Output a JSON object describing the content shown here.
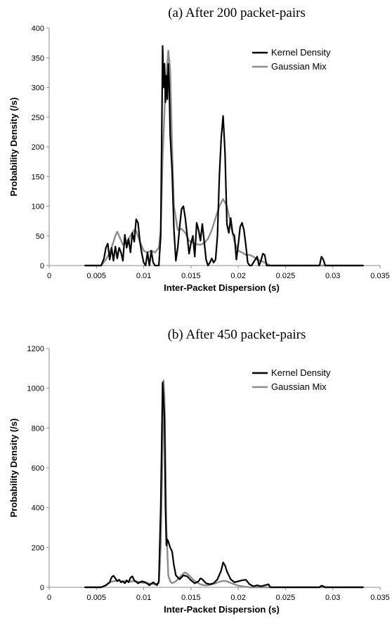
{
  "chart_data": [
    {
      "type": "line",
      "title": "(a)   After 200 packet-pairs",
      "xlabel": "Inter-Packet Dispersion (s)",
      "ylabel": "Probability Density (/s)",
      "xlim": [
        0,
        0.035
      ],
      "ylim": [
        0,
        400
      ],
      "xticks": [
        "0",
        "0.005",
        "0.01",
        "0.015",
        "0.02",
        "0.025",
        "0.03",
        "0.035"
      ],
      "yticks": [
        "0",
        "50",
        "100",
        "150",
        "200",
        "250",
        "300",
        "350",
        "400"
      ],
      "legend_position": "top-right",
      "colors": {
        "Kernel Density": "#000000",
        "Gaussian Mix": "#8c8c8c"
      },
      "series": [
        {
          "name": "Kernel Density",
          "points": [
            [
              0.0038,
              0
            ],
            [
              0.0055,
              0
            ],
            [
              0.0058,
              12
            ],
            [
              0.006,
              30
            ],
            [
              0.0062,
              37
            ],
            [
              0.0064,
              10
            ],
            [
              0.0066,
              30
            ],
            [
              0.0068,
              8
            ],
            [
              0.007,
              32
            ],
            [
              0.0072,
              12
            ],
            [
              0.0074,
              30
            ],
            [
              0.0076,
              22
            ],
            [
              0.0078,
              8
            ],
            [
              0.008,
              52
            ],
            [
              0.0082,
              30
            ],
            [
              0.0084,
              45
            ],
            [
              0.0086,
              22
            ],
            [
              0.0088,
              55
            ],
            [
              0.009,
              40
            ],
            [
              0.0092,
              78
            ],
            [
              0.0094,
              72
            ],
            [
              0.0096,
              40
            ],
            [
              0.0098,
              20
            ],
            [
              0.01,
              5
            ],
            [
              0.0102,
              0
            ],
            [
              0.0104,
              22
            ],
            [
              0.0106,
              0
            ],
            [
              0.0108,
              25
            ],
            [
              0.011,
              5
            ],
            [
              0.0112,
              0
            ],
            [
              0.0116,
              0
            ],
            [
              0.0118,
              50
            ],
            [
              0.012,
              370
            ],
            [
              0.0121,
              300
            ],
            [
              0.0122,
              340
            ],
            [
              0.0123,
              275
            ],
            [
              0.0124,
              320
            ],
            [
              0.0125,
              280
            ],
            [
              0.0126,
              340
            ],
            [
              0.0127,
              300
            ],
            [
              0.0128,
              220
            ],
            [
              0.013,
              160
            ],
            [
              0.0132,
              60
            ],
            [
              0.0134,
              8
            ],
            [
              0.0136,
              30
            ],
            [
              0.0138,
              65
            ],
            [
              0.014,
              95
            ],
            [
              0.0142,
              100
            ],
            [
              0.0144,
              80
            ],
            [
              0.0146,
              50
            ],
            [
              0.0148,
              20
            ],
            [
              0.015,
              38
            ],
            [
              0.0152,
              50
            ],
            [
              0.0154,
              15
            ],
            [
              0.0156,
              72
            ],
            [
              0.0158,
              60
            ],
            [
              0.016,
              42
            ],
            [
              0.0162,
              70
            ],
            [
              0.0164,
              40
            ],
            [
              0.0166,
              10
            ],
            [
              0.0168,
              0
            ],
            [
              0.017,
              5
            ],
            [
              0.0172,
              12
            ],
            [
              0.0174,
              5
            ],
            [
              0.0176,
              10
            ],
            [
              0.0178,
              50
            ],
            [
              0.018,
              150
            ],
            [
              0.0182,
              215
            ],
            [
              0.0184,
              252
            ],
            [
              0.0186,
              190
            ],
            [
              0.0188,
              70
            ],
            [
              0.019,
              55
            ],
            [
              0.0192,
              80
            ],
            [
              0.0194,
              55
            ],
            [
              0.0196,
              50
            ],
            [
              0.0198,
              10
            ],
            [
              0.02,
              35
            ],
            [
              0.0202,
              65
            ],
            [
              0.0204,
              72
            ],
            [
              0.0206,
              60
            ],
            [
              0.0208,
              35
            ],
            [
              0.021,
              5
            ],
            [
              0.0212,
              0
            ],
            [
              0.0214,
              0
            ],
            [
              0.0216,
              5
            ],
            [
              0.0218,
              10
            ],
            [
              0.022,
              15
            ],
            [
              0.0222,
              0
            ],
            [
              0.0224,
              8
            ],
            [
              0.0226,
              20
            ],
            [
              0.0228,
              18
            ],
            [
              0.023,
              0
            ],
            [
              0.0234,
              0
            ],
            [
              0.0286,
              0
            ],
            [
              0.0288,
              15
            ],
            [
              0.029,
              10
            ],
            [
              0.0292,
              0
            ],
            [
              0.0332,
              0
            ]
          ]
        },
        {
          "name": "Gaussian Mix",
          "points": [
            [
              0.0038,
              0
            ],
            [
              0.0055,
              0
            ],
            [
              0.006,
              10
            ],
            [
              0.0065,
              25
            ],
            [
              0.007,
              50
            ],
            [
              0.0072,
              57
            ],
            [
              0.0074,
              50
            ],
            [
              0.0078,
              35
            ],
            [
              0.0082,
              40
            ],
            [
              0.0086,
              50
            ],
            [
              0.009,
              60
            ],
            [
              0.0092,
              58
            ],
            [
              0.0096,
              40
            ],
            [
              0.01,
              25
            ],
            [
              0.0104,
              22
            ],
            [
              0.0108,
              25
            ],
            [
              0.0112,
              22
            ],
            [
              0.0116,
              30
            ],
            [
              0.0118,
              60
            ],
            [
              0.012,
              180
            ],
            [
              0.0123,
              300
            ],
            [
              0.0126,
              362
            ],
            [
              0.0128,
              330
            ],
            [
              0.013,
              200
            ],
            [
              0.0132,
              100
            ],
            [
              0.0136,
              60
            ],
            [
              0.014,
              62
            ],
            [
              0.0144,
              55
            ],
            [
              0.0148,
              42
            ],
            [
              0.0152,
              38
            ],
            [
              0.0156,
              36
            ],
            [
              0.016,
              35
            ],
            [
              0.0164,
              38
            ],
            [
              0.0168,
              45
            ],
            [
              0.0172,
              60
            ],
            [
              0.0176,
              80
            ],
            [
              0.018,
              100
            ],
            [
              0.0184,
              112
            ],
            [
              0.0188,
              100
            ],
            [
              0.0192,
              70
            ],
            [
              0.0196,
              40
            ],
            [
              0.02,
              25
            ],
            [
              0.0204,
              22
            ],
            [
              0.0208,
              18
            ],
            [
              0.0212,
              18
            ],
            [
              0.0216,
              15
            ],
            [
              0.022,
              10
            ],
            [
              0.0224,
              8
            ],
            [
              0.0228,
              5
            ],
            [
              0.0234,
              0
            ],
            [
              0.0332,
              0
            ]
          ]
        }
      ]
    },
    {
      "type": "line",
      "title": "(b)   After 450 packet-pairs",
      "xlabel": "Inter-Packet Dispersion (s)",
      "ylabel": "Probability Density (/s)",
      "xlim": [
        0,
        0.035
      ],
      "ylim": [
        0,
        1200
      ],
      "xticks": [
        "0",
        "0.005",
        "0.01",
        "0.015",
        "0.02",
        "0.025",
        "0.03",
        "0.035"
      ],
      "yticks": [
        "0",
        "200",
        "400",
        "600",
        "800",
        "1000",
        "1200"
      ],
      "legend_position": "top-right",
      "colors": {
        "Kernel Density": "#000000",
        "Gaussian Mix": "#8c8c8c"
      },
      "series": [
        {
          "name": "Kernel Density",
          "points": [
            [
              0.0038,
              0
            ],
            [
              0.0055,
              0
            ],
            [
              0.006,
              10
            ],
            [
              0.0064,
              25
            ],
            [
              0.0066,
              50
            ],
            [
              0.0068,
              58
            ],
            [
              0.007,
              45
            ],
            [
              0.0072,
              30
            ],
            [
              0.0074,
              38
            ],
            [
              0.0076,
              25
            ],
            [
              0.0078,
              30
            ],
            [
              0.008,
              20
            ],
            [
              0.0082,
              35
            ],
            [
              0.0084,
              25
            ],
            [
              0.0086,
              48
            ],
            [
              0.0088,
              55
            ],
            [
              0.009,
              35
            ],
            [
              0.0094,
              20
            ],
            [
              0.0098,
              30
            ],
            [
              0.0102,
              25
            ],
            [
              0.0106,
              10
            ],
            [
              0.011,
              25
            ],
            [
              0.0114,
              10
            ],
            [
              0.0116,
              30
            ],
            [
              0.0118,
              400
            ],
            [
              0.012,
              1030
            ],
            [
              0.0122,
              850
            ],
            [
              0.0123,
              400
            ],
            [
              0.0124,
              210
            ],
            [
              0.0125,
              240
            ],
            [
              0.0126,
              230
            ],
            [
              0.0128,
              200
            ],
            [
              0.013,
              180
            ],
            [
              0.0132,
              110
            ],
            [
              0.0134,
              60
            ],
            [
              0.0138,
              40
            ],
            [
              0.0142,
              60
            ],
            [
              0.0146,
              55
            ],
            [
              0.015,
              35
            ],
            [
              0.0154,
              20
            ],
            [
              0.0158,
              30
            ],
            [
              0.016,
              45
            ],
            [
              0.0162,
              40
            ],
            [
              0.0166,
              20
            ],
            [
              0.017,
              15
            ],
            [
              0.0174,
              20
            ],
            [
              0.0178,
              40
            ],
            [
              0.0182,
              85
            ],
            [
              0.0184,
              125
            ],
            [
              0.0186,
              110
            ],
            [
              0.0188,
              80
            ],
            [
              0.0192,
              40
            ],
            [
              0.0196,
              25
            ],
            [
              0.02,
              30
            ],
            [
              0.0204,
              35
            ],
            [
              0.0208,
              38
            ],
            [
              0.0212,
              15
            ],
            [
              0.0216,
              5
            ],
            [
              0.022,
              10
            ],
            [
              0.0224,
              5
            ],
            [
              0.0228,
              10
            ],
            [
              0.0232,
              15
            ],
            [
              0.0234,
              0
            ],
            [
              0.0286,
              0
            ],
            [
              0.0288,
              8
            ],
            [
              0.029,
              5
            ],
            [
              0.0292,
              0
            ],
            [
              0.0332,
              0
            ]
          ]
        },
        {
          "name": "Gaussian Mix",
          "points": [
            [
              0.0038,
              0
            ],
            [
              0.0055,
              0
            ],
            [
              0.006,
              10
            ],
            [
              0.0064,
              25
            ],
            [
              0.0068,
              30
            ],
            [
              0.0072,
              35
            ],
            [
              0.0076,
              30
            ],
            [
              0.008,
              30
            ],
            [
              0.0084,
              28
            ],
            [
              0.0088,
              30
            ],
            [
              0.0092,
              30
            ],
            [
              0.0096,
              25
            ],
            [
              0.01,
              22
            ],
            [
              0.0104,
              20
            ],
            [
              0.0108,
              18
            ],
            [
              0.0112,
              15
            ],
            [
              0.0116,
              20
            ],
            [
              0.0118,
              200
            ],
            [
              0.012,
              700
            ],
            [
              0.0121,
              1040
            ],
            [
              0.0122,
              950
            ],
            [
              0.0124,
              300
            ],
            [
              0.0126,
              60
            ],
            [
              0.0128,
              30
            ],
            [
              0.013,
              20
            ],
            [
              0.0134,
              30
            ],
            [
              0.0138,
              50
            ],
            [
              0.0142,
              70
            ],
            [
              0.0144,
              75
            ],
            [
              0.0148,
              60
            ],
            [
              0.0152,
              40
            ],
            [
              0.0156,
              25
            ],
            [
              0.016,
              15
            ],
            [
              0.0164,
              10
            ],
            [
              0.0168,
              10
            ],
            [
              0.0172,
              15
            ],
            [
              0.0176,
              20
            ],
            [
              0.018,
              28
            ],
            [
              0.0184,
              32
            ],
            [
              0.0188,
              30
            ],
            [
              0.0192,
              22
            ],
            [
              0.0196,
              15
            ],
            [
              0.02,
              8
            ],
            [
              0.0204,
              5
            ],
            [
              0.0212,
              0
            ],
            [
              0.0332,
              0
            ]
          ]
        }
      ]
    }
  ]
}
